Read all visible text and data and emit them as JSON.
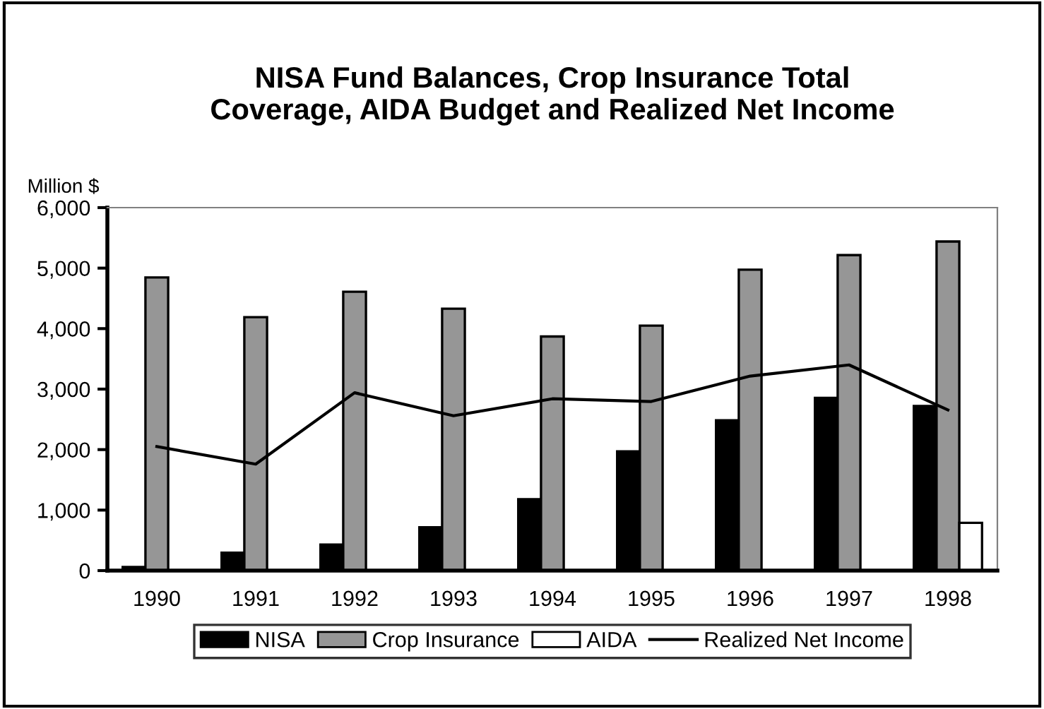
{
  "chart_data": {
    "type": "bar",
    "title": "NISA Fund Balances, Crop Insurance Total\nCoverage, AIDA Budget and Realized Net Income",
    "ylabel": "Million $",
    "categories": [
      "1990",
      "1991",
      "1992",
      "1993",
      "1994",
      "1995",
      "1996",
      "1997",
      "1998"
    ],
    "series": [
      {
        "name": "NISA",
        "color": "#000000",
        "values": [
          60,
          295,
          430,
          715,
          1180,
          1970,
          2485,
          2855,
          2720
        ]
      },
      {
        "name": "Crop Insurance",
        "color": "#969696",
        "values": [
          4845,
          4190,
          4610,
          4330,
          3870,
          4050,
          4975,
          5215,
          5440
        ]
      },
      {
        "name": "AIDA",
        "color": "#ffffff",
        "values": [
          null,
          null,
          null,
          null,
          null,
          null,
          null,
          null,
          790
        ]
      },
      {
        "name": "Realized Net Income",
        "type": "line",
        "color": "#000000",
        "values": [
          2050,
          1760,
          2940,
          2560,
          2840,
          2795,
          3215,
          3400,
          2655
        ]
      }
    ],
    "ylim": [
      0,
      6000
    ],
    "yticks": [
      {
        "value": 0,
        "label": "0"
      },
      {
        "value": 1000,
        "label": "1,000"
      },
      {
        "value": 2000,
        "label": "2,000"
      },
      {
        "value": 3000,
        "label": "3,000"
      },
      {
        "value": 4000,
        "label": "4,000"
      },
      {
        "value": 5000,
        "label": "5,000"
      },
      {
        "value": 6000,
        "label": "6,000"
      }
    ],
    "grid": false,
    "legend": "bottom",
    "marker": "none",
    "line_style": "solid"
  }
}
